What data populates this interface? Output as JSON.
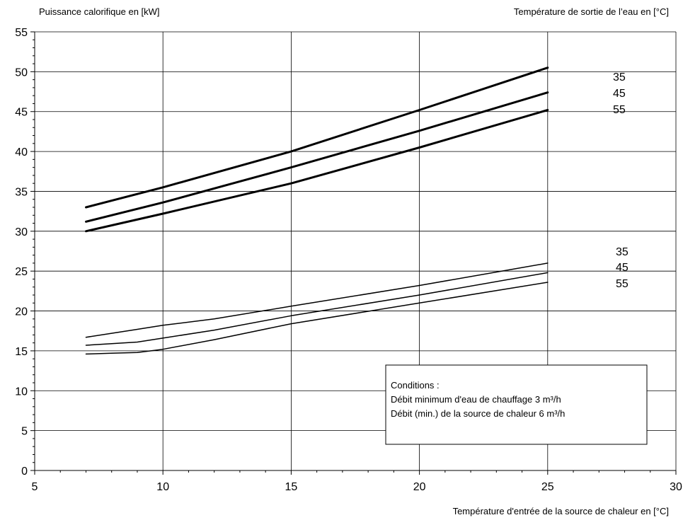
{
  "chart_data": {
    "type": "line",
    "ylabel": "Puissance calorifique en [kW]",
    "legend_title": "Température de sortie de l’eau en [°C]",
    "xlabel": "Température d'entrée de la source de chaleur en [°C]",
    "xlim": [
      5,
      30
    ],
    "ylim": [
      0,
      55
    ],
    "x_ticks": [
      "5",
      "10",
      "15",
      "20",
      "25",
      "30"
    ],
    "y_ticks": [
      "0",
      "5",
      "10",
      "15",
      "20",
      "25",
      "30",
      "35",
      "40",
      "45",
      "50",
      "55"
    ],
    "grid": true,
    "upper_labels": [
      "35",
      "45",
      "55"
    ],
    "lower_labels": [
      "35",
      "45",
      "55"
    ],
    "series": [
      {
        "name": "35",
        "group": "upper",
        "x": [
          7,
          10,
          15,
          20,
          25
        ],
        "y": [
          33.0,
          35.5,
          40.0,
          45.2,
          50.5
        ]
      },
      {
        "name": "45",
        "group": "upper",
        "x": [
          7,
          10,
          15,
          20,
          25
        ],
        "y": [
          31.2,
          33.6,
          38.0,
          42.6,
          47.4
        ]
      },
      {
        "name": "55",
        "group": "upper",
        "x": [
          7,
          10,
          15,
          20,
          25
        ],
        "y": [
          30.0,
          32.2,
          36.0,
          40.5,
          45.2
        ]
      },
      {
        "name": "35",
        "group": "lower",
        "x": [
          7,
          8,
          9,
          10,
          12,
          15,
          20,
          25
        ],
        "y": [
          16.7,
          17.2,
          17.7,
          18.2,
          19.0,
          20.6,
          23.2,
          26.0
        ]
      },
      {
        "name": "45",
        "group": "lower",
        "x": [
          7,
          8,
          9,
          10,
          12,
          15,
          20,
          25
        ],
        "y": [
          15.7,
          15.9,
          16.1,
          16.6,
          17.6,
          19.4,
          22.0,
          24.8
        ]
      },
      {
        "name": "55",
        "group": "lower",
        "x": [
          7,
          8,
          9,
          10,
          12,
          15,
          20,
          25
        ],
        "y": [
          14.6,
          14.7,
          14.8,
          15.2,
          16.4,
          18.4,
          21.0,
          23.6
        ]
      }
    ],
    "notes": {
      "title": "Conditions :",
      "line1": "Débit minimum d'eau de chauffage 3 m³/h",
      "line2": "Débit (min.) de la source de chaleur 6 m³/h"
    }
  }
}
